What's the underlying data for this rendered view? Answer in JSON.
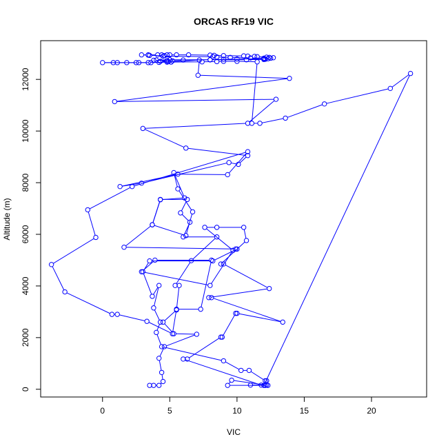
{
  "chart_data": {
    "type": "line",
    "title": "ORCAS RF19 VIC",
    "xlabel": "VIC",
    "ylabel": "Altitude (m)",
    "xlim": [
      -4.6,
      24.1
    ],
    "ylim": [
      -300,
      13500
    ],
    "xticks": [
      0,
      5,
      10,
      15,
      20
    ],
    "yticks": [
      0,
      2000,
      4000,
      6000,
      8000,
      10000,
      12000
    ],
    "grid": false,
    "legend": "none",
    "colors": {
      "series": "#0000ff",
      "axes": "#000000"
    },
    "series": [
      {
        "points": [
          [
            3.5,
            150
          ],
          [
            3.8,
            150
          ],
          [
            4.2,
            150
          ],
          [
            4.5,
            300
          ],
          [
            4.4,
            650
          ],
          [
            4.2,
            1200
          ],
          [
            4.6,
            1650
          ],
          [
            7.0,
            2130
          ],
          [
            5.3,
            2150
          ],
          [
            4.5,
            2600
          ],
          [
            5.5,
            3070
          ],
          [
            5.7,
            4020
          ],
          [
            5.4,
            4020
          ],
          [
            6.6,
            4980
          ],
          [
            8.5,
            5900
          ],
          [
            6.0,
            5900
          ],
          [
            6.5,
            6470
          ],
          [
            5.8,
            6830
          ],
          [
            6.3,
            7350
          ],
          [
            4.3,
            7350
          ],
          [
            3.7,
            6370
          ],
          [
            6.2,
            5950
          ],
          [
            6.7,
            6870
          ],
          [
            5.6,
            7760
          ],
          [
            5.3,
            8390
          ],
          [
            6.1,
            7410
          ],
          [
            4.3,
            7340
          ],
          [
            3.7,
            6370
          ],
          [
            1.6,
            5500
          ],
          [
            9.9,
            5430
          ],
          [
            10.0,
            5430
          ],
          [
            8.2,
            4970
          ],
          [
            3.5,
            4970
          ],
          [
            3.0,
            4550
          ],
          [
            3.7,
            3600
          ],
          [
            4.2,
            4020
          ],
          [
            3.8,
            3150
          ],
          [
            4.3,
            2600
          ],
          [
            4.0,
            2200
          ],
          [
            4.4,
            1650
          ],
          [
            9.0,
            1100
          ],
          [
            10.3,
            730
          ],
          [
            10.9,
            730
          ],
          [
            12.1,
            330
          ],
          [
            12.2,
            330
          ],
          [
            12.1,
            150
          ],
          [
            12.3,
            150
          ],
          [
            9.3,
            150
          ],
          [
            9.6,
            350
          ],
          [
            12.2,
            160
          ],
          [
            11.0,
            160
          ],
          [
            11.8,
            160
          ],
          [
            6.0,
            1170
          ],
          [
            6.3,
            1170
          ],
          [
            8.8,
            2020
          ],
          [
            8.9,
            2020
          ],
          [
            9.9,
            2940
          ],
          [
            10.0,
            2940
          ],
          [
            13.4,
            2600
          ],
          [
            8.1,
            3550
          ],
          [
            7.9,
            3550
          ],
          [
            12.4,
            3900
          ],
          [
            9.0,
            4850
          ],
          [
            8.8,
            4850
          ],
          [
            10.7,
            5760
          ],
          [
            10.5,
            6270
          ],
          [
            8.5,
            6270
          ],
          [
            7.6,
            6270
          ],
          [
            9.7,
            5380
          ],
          [
            8.0,
            4020
          ],
          [
            2.9,
            4550
          ],
          [
            3.9,
            5000
          ],
          [
            8.1,
            5000
          ],
          [
            7.3,
            3100
          ],
          [
            5.5,
            3100
          ],
          [
            5.2,
            2150
          ],
          [
            3.3,
            2630
          ],
          [
            1.1,
            2900
          ],
          [
            0.7,
            2900
          ],
          [
            -2.8,
            3770
          ],
          [
            -3.8,
            4830
          ],
          [
            -0.5,
            5880
          ],
          [
            -1.1,
            6950
          ],
          [
            2.2,
            7850
          ],
          [
            10.8,
            9200
          ],
          [
            9.3,
            8310
          ],
          [
            5.6,
            8330
          ],
          [
            1.3,
            7850
          ],
          [
            2.9,
            7980
          ],
          [
            9.4,
            8780
          ],
          [
            10.1,
            8710
          ],
          [
            10.8,
            9050
          ],
          [
            6.2,
            9340
          ],
          [
            3.0,
            10100
          ],
          [
            10.8,
            10300
          ],
          [
            12.9,
            11230
          ],
          [
            0.9,
            11140
          ],
          [
            13.9,
            12040
          ],
          [
            7.1,
            12160
          ],
          [
            7.2,
            12750
          ],
          [
            4.8,
            12670
          ],
          [
            3.6,
            12650
          ],
          [
            2.5,
            12650
          ],
          [
            1.8,
            12650
          ],
          [
            1.1,
            12650
          ],
          [
            0.8,
            12650
          ],
          [
            0,
            12650
          ],
          [
            2.7,
            12650
          ],
          [
            3.4,
            12650
          ],
          [
            4.2,
            12660
          ],
          [
            4.8,
            12680
          ],
          [
            4.9,
            12690
          ],
          [
            5.2,
            12720
          ],
          [
            6.0,
            12750
          ],
          [
            8.0,
            12760
          ],
          [
            9.0,
            12780
          ],
          [
            10.0,
            12790
          ],
          [
            12.0,
            12800
          ],
          [
            12.5,
            12820
          ],
          [
            12.7,
            12840
          ],
          [
            12.4,
            12850
          ],
          [
            12.2,
            12860
          ],
          [
            11.5,
            12880
          ],
          [
            11.3,
            12890
          ],
          [
            10.8,
            12900
          ],
          [
            10.5,
            12910
          ],
          [
            9.0,
            12920
          ],
          [
            8.3,
            12930
          ],
          [
            8.0,
            12940
          ],
          [
            6.4,
            12950
          ],
          [
            5.5,
            12950
          ],
          [
            5.0,
            12950
          ],
          [
            4.8,
            12950
          ],
          [
            4.4,
            12950
          ],
          [
            4.1,
            12950
          ],
          [
            3.4,
            12950
          ],
          [
            2.9,
            12950
          ],
          [
            3.4,
            12940
          ],
          [
            3.5,
            12930
          ],
          [
            4.6,
            12920
          ],
          [
            4.5,
            12900
          ],
          [
            8.2,
            12880
          ],
          [
            8.5,
            12870
          ],
          [
            9.5,
            12850
          ],
          [
            11.0,
            12830
          ],
          [
            12.0,
            12820
          ],
          [
            12.3,
            12800
          ],
          [
            12.1,
            12780
          ],
          [
            12.0,
            12770
          ],
          [
            10.7,
            12760
          ],
          [
            8.0,
            12760
          ],
          [
            5.0,
            12760
          ],
          [
            4.0,
            12750
          ],
          [
            3.8,
            12740
          ],
          [
            4.8,
            12730
          ],
          [
            4.3,
            12700
          ],
          [
            5.1,
            12670
          ],
          [
            7.4,
            12680
          ],
          [
            8.5,
            12690
          ],
          [
            9.0,
            12700
          ],
          [
            10.0,
            12700
          ],
          [
            11.5,
            12680
          ],
          [
            11.1,
            10300
          ],
          [
            11.7,
            10300
          ],
          [
            13.6,
            10500
          ],
          [
            16.5,
            11050
          ],
          [
            21.4,
            11650
          ],
          [
            22.9,
            12230
          ],
          [
            12.0,
            150
          ]
        ]
      }
    ]
  }
}
